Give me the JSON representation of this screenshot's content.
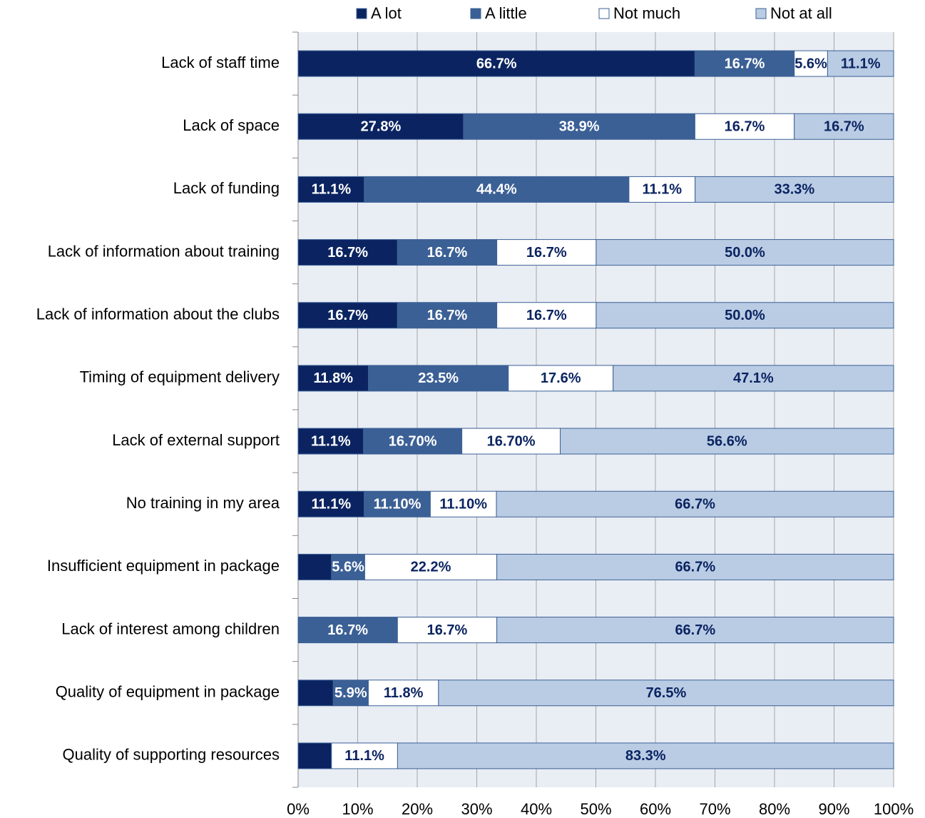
{
  "chart_data": {
    "type": "bar",
    "orientation": "horizontal",
    "stacked": "percent",
    "categories": [
      "Lack of staff time",
      "Lack of space",
      "Lack of funding",
      "Lack of information about training",
      "Lack of information about the clubs",
      "Timing of equipment delivery",
      "Lack of external support",
      "No training in my area",
      "Insufficient equipment in package",
      "Lack of interest among children",
      "Quality of equipment in package",
      "Quality of supporting resources"
    ],
    "series": [
      {
        "name": "A lot",
        "color": "#0b2461",
        "label_color": "#ffffff",
        "values": [
          66.7,
          27.8,
          11.1,
          16.7,
          16.7,
          11.8,
          11.1,
          11.1,
          5.6,
          0,
          5.9,
          5.6
        ],
        "value_labels": [
          "66.7%",
          "27.8%",
          "11.1%",
          "16.7%",
          "16.7%",
          "11.8%",
          "11.1%",
          "11.1%",
          null,
          null,
          null,
          null
        ]
      },
      {
        "name": "A little",
        "color": "#3b6095",
        "label_color": "#ffffff",
        "values": [
          16.7,
          38.9,
          44.4,
          16.7,
          16.7,
          23.5,
          16.7,
          11.1,
          5.6,
          16.7,
          5.9,
          0
        ],
        "value_labels": [
          "16.7%",
          "38.9%",
          "44.4%",
          "16.7%",
          "16.7%",
          "23.5%",
          "16.70%",
          "11.10%",
          "5.6%",
          "16.7%",
          "5.9%",
          null
        ]
      },
      {
        "name": "Not much",
        "color": "#ffffff",
        "label_color": "#0b2461",
        "values": [
          5.6,
          16.7,
          11.1,
          16.7,
          16.7,
          17.6,
          16.7,
          11.1,
          22.2,
          16.7,
          11.8,
          11.1
        ],
        "value_labels": [
          "5.6%",
          "16.7%",
          "11.1%",
          "16.7%",
          "16.7%",
          "17.6%",
          "16.70%",
          "11.10%",
          "22.2%",
          "16.7%",
          "11.8%",
          "11.1%"
        ]
      },
      {
        "name": "Not at all",
        "color": "#b9cce4",
        "label_color": "#0b2461",
        "values": [
          11.1,
          16.7,
          33.3,
          50.0,
          50.0,
          47.1,
          56.6,
          66.7,
          66.7,
          66.7,
          76.5,
          83.3
        ],
        "value_labels": [
          "11.1%",
          "16.7%",
          "33.3%",
          "50.0%",
          "50.0%",
          "47.1%",
          "56.6%",
          "66.7%",
          "66.7%",
          "66.7%",
          "76.5%",
          "83.3%"
        ]
      }
    ],
    "xlim": [
      0,
      100
    ],
    "xticks": [
      {
        "value": 0,
        "label": "0%"
      },
      {
        "value": 10,
        "label": "10%"
      },
      {
        "value": 20,
        "label": "20%"
      },
      {
        "value": 30,
        "label": "30%"
      },
      {
        "value": 40,
        "label": "40%"
      },
      {
        "value": 50,
        "label": "50%"
      },
      {
        "value": 60,
        "label": "60%"
      },
      {
        "value": 70,
        "label": "70%"
      },
      {
        "value": 80,
        "label": "80%"
      },
      {
        "value": 90,
        "label": "90%"
      },
      {
        "value": 100,
        "label": "100%"
      }
    ],
    "grid": true,
    "legend": "top"
  }
}
